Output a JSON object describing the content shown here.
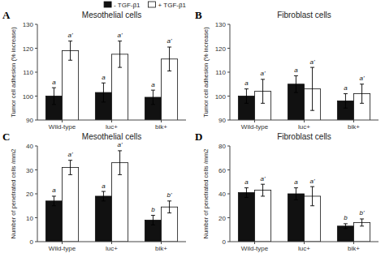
{
  "chart_data": [
    {
      "type": "bar",
      "panel_label": "A",
      "title": "Mesothelial cells",
      "ylabel": "Tumor cell adhesion (% increase)",
      "categories": [
        "Wild-type",
        "luc+",
        "bik+"
      ],
      "ylim": [
        90,
        130
      ],
      "yticks": [
        90,
        100,
        110,
        120,
        130
      ],
      "legend": "upper right",
      "series": [
        {
          "name": "- TGF-β1",
          "color": "#111111",
          "values": [
            100,
            101.5,
            99.5
          ],
          "errors": [
            3.5,
            4,
            3
          ],
          "annotations": [
            "a",
            "a",
            "a"
          ]
        },
        {
          "name": "+ TGF-β1",
          "color": "#ffffff",
          "values": [
            119,
            117.5,
            115.5
          ],
          "errors": [
            4,
            5.5,
            5
          ],
          "annotations": [
            "a'",
            "a'",
            "a'"
          ]
        }
      ]
    },
    {
      "type": "bar",
      "panel_label": "B",
      "title": "Fibroblast cells",
      "ylabel": "Tumor cell adhesion (% increase)",
      "categories": [
        "Wild-type",
        "luc+",
        "bik+"
      ],
      "ylim": [
        90,
        130
      ],
      "yticks": [
        90,
        100,
        110,
        120,
        130
      ],
      "series": [
        {
          "color": "#111111",
          "values": [
            100,
            105,
            98
          ],
          "errors": [
            3,
            3.5,
            3
          ],
          "annotations": [
            "a",
            "a",
            "a"
          ]
        },
        {
          "color": "#ffffff",
          "values": [
            102,
            103,
            101
          ],
          "errors": [
            5,
            9,
            4
          ],
          "annotations": [
            "a'",
            "a'",
            "a'"
          ]
        }
      ]
    },
    {
      "type": "bar",
      "panel_label": "C",
      "title": "Mesothelial cells",
      "ylabel": "Number of penetrated cells /mm2",
      "categories": [
        "Wild-type",
        "luc+",
        "bik+"
      ],
      "ylim": [
        0,
        40
      ],
      "yticks": [
        0,
        10,
        20,
        30,
        40
      ],
      "series": [
        {
          "color": "#111111",
          "values": [
            17,
            19,
            9
          ],
          "errors": [
            2,
            2,
            2
          ],
          "annotations": [
            "a",
            "a",
            "b"
          ]
        },
        {
          "color": "#ffffff",
          "values": [
            31,
            33,
            14.5
          ],
          "errors": [
            3,
            5,
            2.5
          ],
          "annotations": [
            "a'",
            "a'",
            "b'"
          ]
        }
      ]
    },
    {
      "type": "bar",
      "panel_label": "D",
      "title": "Fibroblast cells",
      "ylabel": "Number of penetrated cells /mm2",
      "categories": [
        "Wild-type",
        "luc+",
        "bik+"
      ],
      "ylim": [
        0,
        80
      ],
      "yticks": [
        0,
        20,
        40,
        60,
        80
      ],
      "series": [
        {
          "color": "#111111",
          "values": [
            41,
            40,
            13
          ],
          "errors": [
            4,
            5,
            2
          ],
          "annotations": [
            "a",
            "a",
            "b"
          ]
        },
        {
          "color": "#ffffff",
          "values": [
            43,
            38,
            16
          ],
          "errors": [
            5,
            8,
            3
          ],
          "annotations": [
            "a'",
            "a'",
            "b'"
          ]
        }
      ]
    }
  ]
}
